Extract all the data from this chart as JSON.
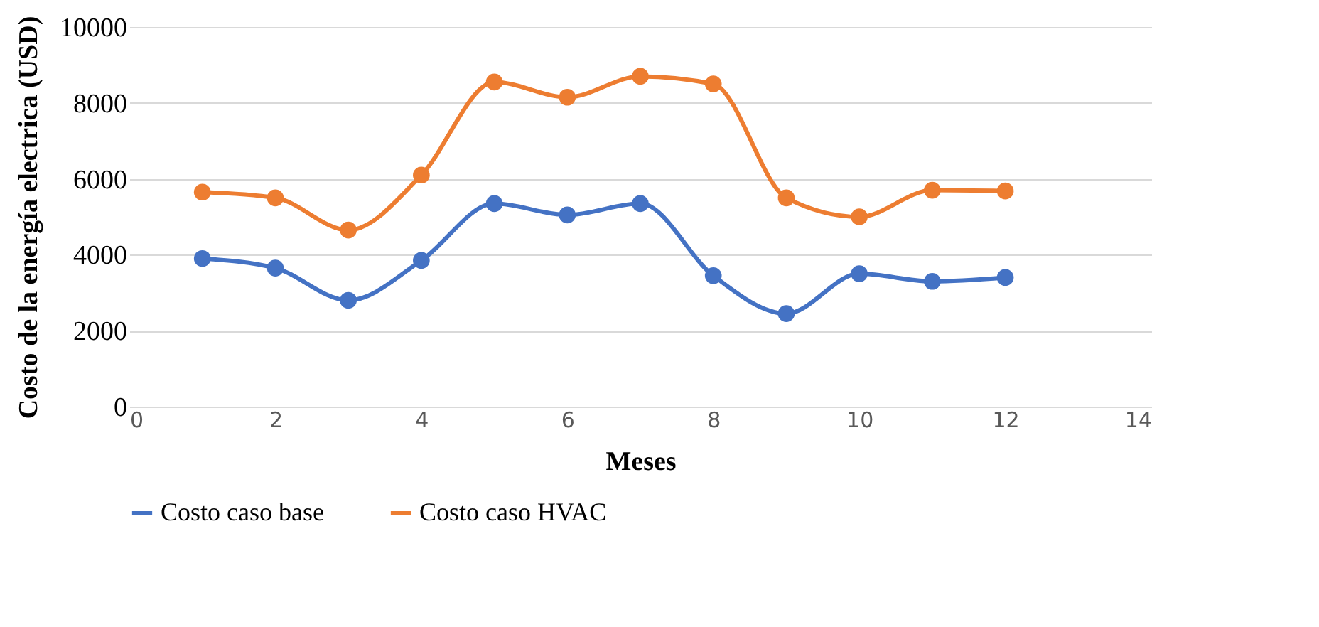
{
  "chart_data": {
    "type": "line",
    "xlabel": "Meses",
    "ylabel": "Costo de la energía electrica (USD)",
    "x": [
      1,
      2,
      3,
      4,
      5,
      6,
      7,
      8,
      9,
      10,
      11,
      12
    ],
    "series": [
      {
        "name": "Costo caso base",
        "color": "#4472c4",
        "values": [
          3900,
          3650,
          2800,
          3850,
          5350,
          5050,
          5350,
          3450,
          2450,
          3500,
          3300,
          3400
        ]
      },
      {
        "name": "Costo caso HVAC",
        "color": "#ed7d31",
        "values": [
          5650,
          5500,
          4650,
          6100,
          8550,
          8150,
          8700,
          8500,
          5500,
          5000,
          5700,
          5680
        ]
      }
    ],
    "xlim": [
      0,
      14
    ],
    "xticks": [
      0,
      2,
      4,
      6,
      8,
      10,
      12,
      14
    ],
    "ylim": [
      0,
      10000
    ],
    "yticks": [
      0,
      2000,
      4000,
      6000,
      8000,
      10000
    ],
    "grid": "y",
    "legend": "bottom",
    "marker": "circle",
    "line_style": "solid"
  }
}
